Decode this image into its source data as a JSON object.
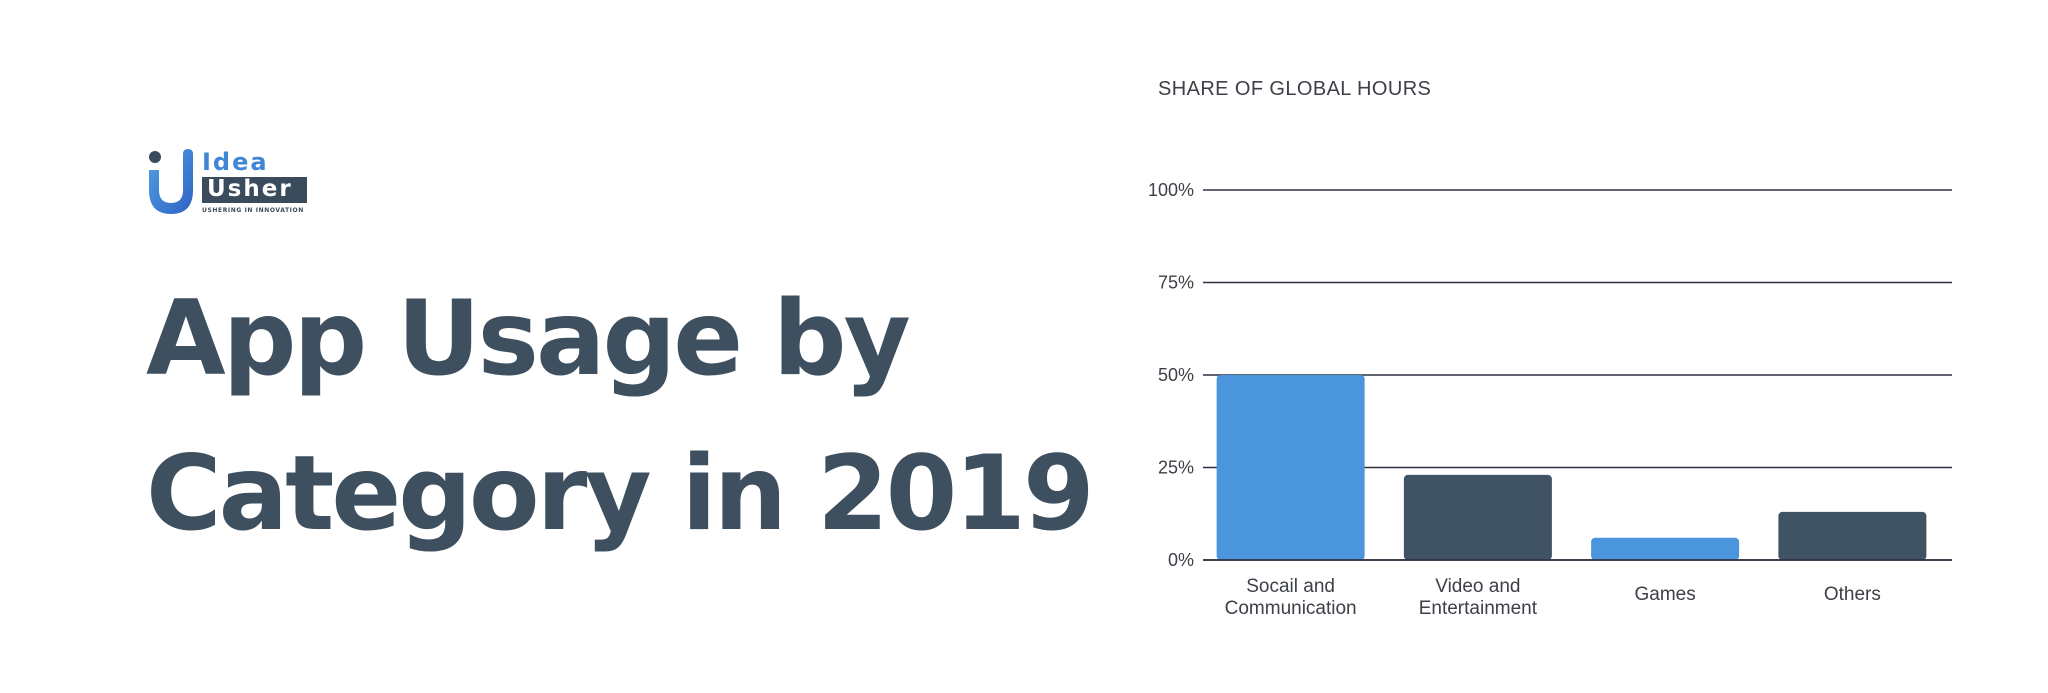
{
  "brand": {
    "name_line1": "Idea",
    "name_line2": "Usher",
    "tagline": "USHERING IN INNOVATION",
    "colors": {
      "blue": "#4a90d9",
      "dark": "#3e5060"
    }
  },
  "headline": {
    "line1": "App Usage by",
    "line2": "Category in 2019"
  },
  "chart_data": {
    "type": "bar",
    "title": "SHARE OF GLOBAL HOURS",
    "xlabel": "",
    "ylabel": "",
    "ylim": [
      0,
      100
    ],
    "yticks": [
      0,
      25,
      50,
      75,
      100
    ],
    "ytick_labels": [
      "0%",
      "25%",
      "50%",
      "75%",
      "100%"
    ],
    "categories": [
      [
        "Socail and",
        "Communication"
      ],
      [
        "Video and",
        "Entertainment"
      ],
      [
        "Games"
      ],
      [
        "Others"
      ]
    ],
    "values": [
      50,
      23,
      6,
      13
    ],
    "bar_colors": [
      "#4a95db",
      "#405364",
      "#4a95db",
      "#405364"
    ],
    "grid": true,
    "grid_color": "#2f3140",
    "legend": "none"
  }
}
